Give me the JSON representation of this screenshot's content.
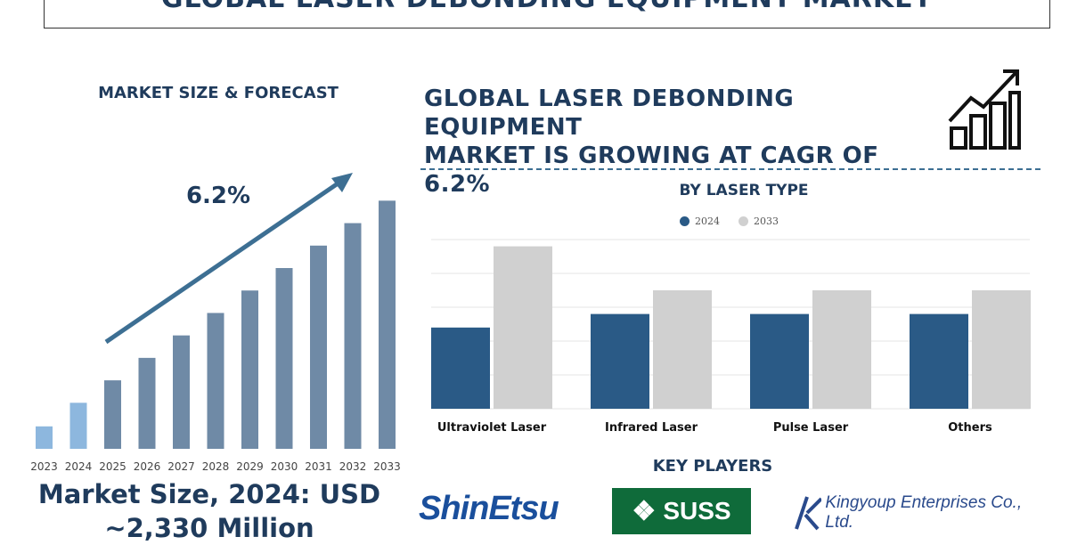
{
  "header": {
    "title": "GLOBAL LASER DEBONDING EQUIPMENT MARKET"
  },
  "left_panel": {
    "heading": "MARKET SIZE & FORECAST",
    "cagr_label": "6.2%",
    "market_size_line1": "Market Size, 2024: USD",
    "market_size_line2": "~2,330 Million"
  },
  "right_panel": {
    "heading_line1": "GLOBAL LASER DEBONDING EQUIPMENT",
    "heading_line2": "MARKET IS GROWING AT CAGR OF 6.2%",
    "growth_icon": "growth-chart-icon",
    "sub_heading": "BY LASER TYPE",
    "key_players_heading": "KEY PLAYERS"
  },
  "logos": {
    "shin_etsu": "ShinEtsu",
    "suss": "SUSS",
    "kingyoup": "Kingyoup Enterprises Co., Ltd."
  },
  "colors": {
    "dark_blue": "#2a5a86",
    "light_blue": "#8db7de",
    "steel": "#6f8aa6",
    "grey": "#d0d0d0",
    "text": "#1f3b5c"
  },
  "chart_data": [
    {
      "type": "bar",
      "categories": [
        "2023",
        "2024",
        "2025",
        "2026",
        "2027",
        "2028",
        "2029",
        "2030",
        "2031",
        "2032",
        "2033"
      ],
      "values": [
        1.0,
        2.05,
        3.05,
        4.05,
        5.05,
        6.05,
        7.05,
        8.05,
        9.05,
        10.05,
        11.05
      ],
      "annotation": "6.2%",
      "ylim": [
        0,
        11.5
      ],
      "grid": false
    },
    {
      "type": "bar",
      "title": "BY LASER TYPE",
      "categories": [
        "Ultraviolet Laser",
        "Infrared Laser",
        "Pulse Laser",
        "Others"
      ],
      "series": [
        {
          "name": "2024",
          "color": "#2a5a86",
          "values": [
            2.4,
            2.8,
            2.8,
            2.8
          ]
        },
        {
          "name": "2033",
          "color": "#d0d0d0",
          "values": [
            4.8,
            3.5,
            3.5,
            3.5
          ]
        }
      ],
      "ylim": [
        0,
        5
      ],
      "grid": true,
      "legend": "top-center"
    }
  ]
}
